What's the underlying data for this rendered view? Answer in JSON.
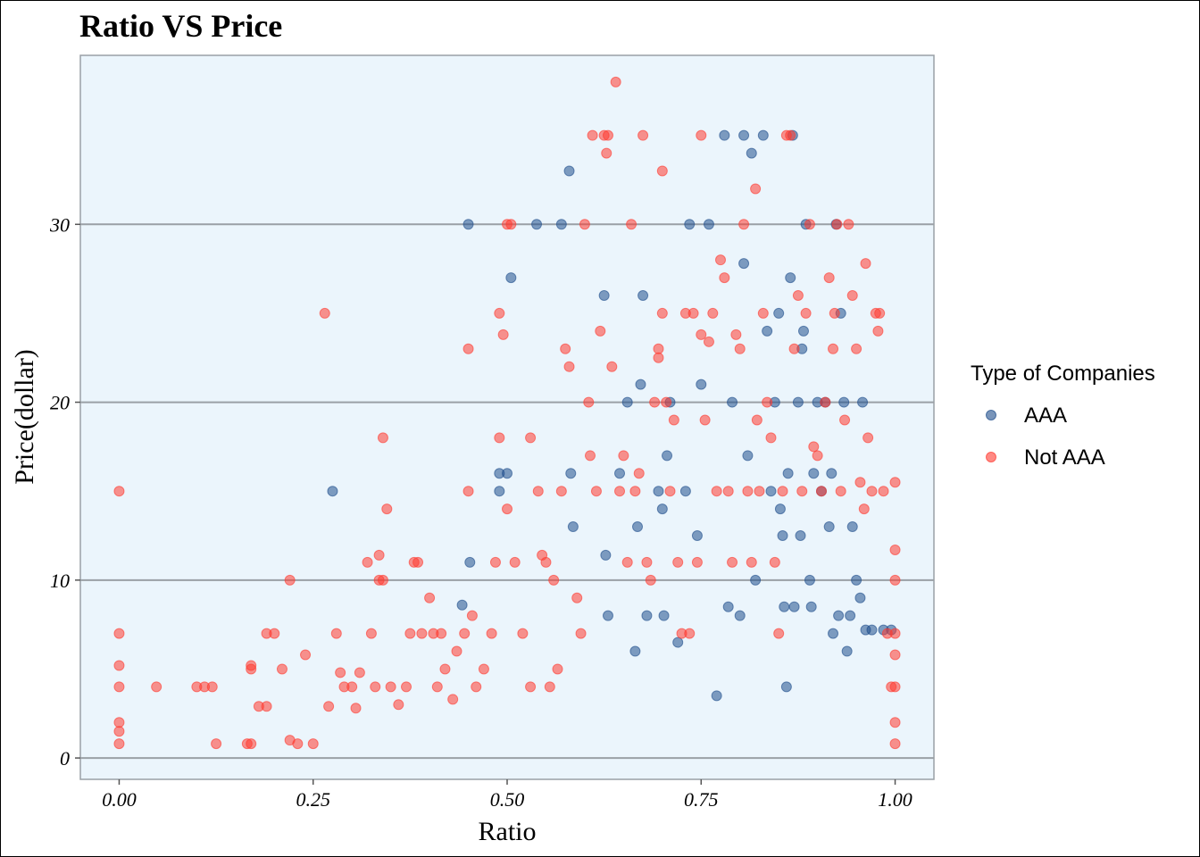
{
  "chart_data": {
    "type": "scatter",
    "title": "Ratio VS Price",
    "xlabel": "Ratio",
    "ylabel": "Price(dollar)",
    "xlim": [
      -0.05,
      1.05
    ],
    "ylim": [
      -1.2,
      39.5
    ],
    "x_ticks": [
      0,
      0.25,
      0.5,
      0.75,
      1.0
    ],
    "x_tick_labels": [
      "0.00",
      "0.25",
      "0.50",
      "0.75",
      "1.00"
    ],
    "y_ticks": [
      0,
      10,
      20,
      30
    ],
    "y_tick_labels": [
      "0",
      "10",
      "20",
      "30"
    ],
    "grid": "horizontal major lines",
    "background": "#EBF5FC",
    "legend": {
      "title": "Type of Companies",
      "placement": "right"
    },
    "series": [
      {
        "name": "AAA",
        "color": "#1F4E8C",
        "points": [
          [
            0.275,
            15
          ],
          [
            0.45,
            30
          ],
          [
            0.452,
            11
          ],
          [
            0.442,
            8.6
          ],
          [
            0.505,
            27
          ],
          [
            0.538,
            30
          ],
          [
            0.57,
            30
          ],
          [
            0.58,
            33
          ],
          [
            0.49,
            16
          ],
          [
            0.49,
            15
          ],
          [
            0.5,
            16
          ],
          [
            0.585,
            13
          ],
          [
            0.582,
            16
          ],
          [
            0.625,
            26
          ],
          [
            0.627,
            11.4
          ],
          [
            0.63,
            8
          ],
          [
            0.645,
            16
          ],
          [
            0.655,
            20
          ],
          [
            0.665,
            6
          ],
          [
            0.668,
            13
          ],
          [
            0.672,
            21
          ],
          [
            0.675,
            26
          ],
          [
            0.68,
            8
          ],
          [
            0.695,
            15
          ],
          [
            0.7,
            14
          ],
          [
            0.702,
            8
          ],
          [
            0.706,
            17
          ],
          [
            0.71,
            20
          ],
          [
            0.72,
            6.5
          ],
          [
            0.73,
            15
          ],
          [
            0.735,
            30
          ],
          [
            0.745,
            12.5
          ],
          [
            0.75,
            21
          ],
          [
            0.76,
            30
          ],
          [
            0.77,
            3.5
          ],
          [
            0.78,
            35
          ],
          [
            0.785,
            8.5
          ],
          [
            0.79,
            20
          ],
          [
            0.8,
            8
          ],
          [
            0.805,
            35
          ],
          [
            0.805,
            27.8
          ],
          [
            0.81,
            17
          ],
          [
            0.815,
            34
          ],
          [
            0.82,
            10
          ],
          [
            0.83,
            35
          ],
          [
            0.835,
            24
          ],
          [
            0.84,
            15
          ],
          [
            0.845,
            20
          ],
          [
            0.85,
            25
          ],
          [
            0.852,
            14
          ],
          [
            0.855,
            12.5
          ],
          [
            0.857,
            8.5
          ],
          [
            0.86,
            4
          ],
          [
            0.862,
            16
          ],
          [
            0.865,
            27
          ],
          [
            0.868,
            35
          ],
          [
            0.87,
            8.5
          ],
          [
            0.875,
            20
          ],
          [
            0.878,
            12.5
          ],
          [
            0.88,
            23
          ],
          [
            0.882,
            24
          ],
          [
            0.885,
            30
          ],
          [
            0.89,
            10
          ],
          [
            0.892,
            8.5
          ],
          [
            0.895,
            16
          ],
          [
            0.9,
            20
          ],
          [
            0.905,
            15
          ],
          [
            0.91,
            20
          ],
          [
            0.915,
            13
          ],
          [
            0.918,
            16
          ],
          [
            0.92,
            7
          ],
          [
            0.924,
            30
          ],
          [
            0.927,
            8
          ],
          [
            0.93,
            25
          ],
          [
            0.934,
            20
          ],
          [
            0.938,
            6
          ],
          [
            0.942,
            8
          ],
          [
            0.945,
            13
          ],
          [
            0.95,
            10
          ],
          [
            0.955,
            9
          ],
          [
            0.958,
            20
          ],
          [
            0.962,
            7.2
          ],
          [
            0.97,
            7.2
          ],
          [
            0.985,
            7.2
          ],
          [
            0.995,
            7.2
          ]
        ]
      },
      {
        "name": "Not AAA",
        "color": "#FF3B30",
        "points": [
          [
            0.0,
            15
          ],
          [
            0.0,
            7
          ],
          [
            0.0,
            5.2
          ],
          [
            0.0,
            4
          ],
          [
            0.0,
            2
          ],
          [
            0.0,
            1.5
          ],
          [
            0.0,
            0.8
          ],
          [
            0.048,
            4
          ],
          [
            0.1,
            4
          ],
          [
            0.11,
            4
          ],
          [
            0.12,
            4
          ],
          [
            0.125,
            0.8
          ],
          [
            0.165,
            0.8
          ],
          [
            0.17,
            5
          ],
          [
            0.17,
            5.2
          ],
          [
            0.17,
            0.8
          ],
          [
            0.18,
            2.9
          ],
          [
            0.19,
            2.9
          ],
          [
            0.19,
            7
          ],
          [
            0.2,
            7
          ],
          [
            0.21,
            5
          ],
          [
            0.22,
            10
          ],
          [
            0.22,
            1
          ],
          [
            0.23,
            0.8
          ],
          [
            0.24,
            5.8
          ],
          [
            0.25,
            0.8
          ],
          [
            0.265,
            25
          ],
          [
            0.27,
            2.9
          ],
          [
            0.28,
            7
          ],
          [
            0.285,
            4.8
          ],
          [
            0.29,
            4
          ],
          [
            0.3,
            4
          ],
          [
            0.305,
            2.8
          ],
          [
            0.31,
            4.8
          ],
          [
            0.32,
            11
          ],
          [
            0.325,
            7
          ],
          [
            0.33,
            4
          ],
          [
            0.335,
            11.4
          ],
          [
            0.335,
            10
          ],
          [
            0.34,
            10
          ],
          [
            0.34,
            18
          ],
          [
            0.345,
            14
          ],
          [
            0.35,
            4
          ],
          [
            0.36,
            3
          ],
          [
            0.37,
            4
          ],
          [
            0.375,
            7
          ],
          [
            0.38,
            11
          ],
          [
            0.385,
            11
          ],
          [
            0.39,
            7
          ],
          [
            0.4,
            9
          ],
          [
            0.405,
            7
          ],
          [
            0.41,
            4
          ],
          [
            0.415,
            7
          ],
          [
            0.42,
            5
          ],
          [
            0.43,
            3.3
          ],
          [
            0.435,
            6
          ],
          [
            0.445,
            7
          ],
          [
            0.45,
            23
          ],
          [
            0.45,
            15
          ],
          [
            0.455,
            8
          ],
          [
            0.46,
            4
          ],
          [
            0.47,
            5
          ],
          [
            0.48,
            7
          ],
          [
            0.485,
            11
          ],
          [
            0.49,
            18
          ],
          [
            0.49,
            25
          ],
          [
            0.495,
            23.8
          ],
          [
            0.5,
            30
          ],
          [
            0.5,
            14
          ],
          [
            0.505,
            30
          ],
          [
            0.51,
            11
          ],
          [
            0.52,
            7
          ],
          [
            0.53,
            4
          ],
          [
            0.53,
            18
          ],
          [
            0.54,
            15
          ],
          [
            0.545,
            11.4
          ],
          [
            0.55,
            11
          ],
          [
            0.555,
            4
          ],
          [
            0.56,
            10
          ],
          [
            0.565,
            5
          ],
          [
            0.57,
            15
          ],
          [
            0.575,
            23
          ],
          [
            0.58,
            22
          ],
          [
            0.59,
            9
          ],
          [
            0.595,
            7
          ],
          [
            0.6,
            30
          ],
          [
            0.605,
            20
          ],
          [
            0.607,
            17
          ],
          [
            0.61,
            35
          ],
          [
            0.615,
            15
          ],
          [
            0.62,
            24
          ],
          [
            0.625,
            35
          ],
          [
            0.628,
            34
          ],
          [
            0.63,
            35
          ],
          [
            0.635,
            22
          ],
          [
            0.64,
            38
          ],
          [
            0.645,
            15
          ],
          [
            0.65,
            17
          ],
          [
            0.655,
            11
          ],
          [
            0.66,
            30
          ],
          [
            0.665,
            15
          ],
          [
            0.67,
            16
          ],
          [
            0.675,
            35
          ],
          [
            0.68,
            11
          ],
          [
            0.685,
            10
          ],
          [
            0.69,
            20
          ],
          [
            0.695,
            23
          ],
          [
            0.695,
            22.5
          ],
          [
            0.7,
            33
          ],
          [
            0.7,
            25
          ],
          [
            0.705,
            20
          ],
          [
            0.71,
            15
          ],
          [
            0.715,
            19
          ],
          [
            0.72,
            11
          ],
          [
            0.725,
            7
          ],
          [
            0.73,
            25
          ],
          [
            0.735,
            7
          ],
          [
            0.74,
            25
          ],
          [
            0.745,
            11
          ],
          [
            0.75,
            35
          ],
          [
            0.75,
            23.8
          ],
          [
            0.755,
            19
          ],
          [
            0.76,
            23.4
          ],
          [
            0.765,
            25
          ],
          [
            0.77,
            15
          ],
          [
            0.775,
            28
          ],
          [
            0.78,
            27
          ],
          [
            0.785,
            15
          ],
          [
            0.79,
            11
          ],
          [
            0.795,
            23.8
          ],
          [
            0.8,
            23
          ],
          [
            0.805,
            30
          ],
          [
            0.81,
            15
          ],
          [
            0.815,
            11
          ],
          [
            0.82,
            32
          ],
          [
            0.822,
            19
          ],
          [
            0.825,
            15
          ],
          [
            0.83,
            25
          ],
          [
            0.835,
            20
          ],
          [
            0.84,
            18
          ],
          [
            0.845,
            11
          ],
          [
            0.85,
            7
          ],
          [
            0.855,
            15
          ],
          [
            0.86,
            35
          ],
          [
            0.865,
            35
          ],
          [
            0.87,
            23
          ],
          [
            0.875,
            26
          ],
          [
            0.88,
            15
          ],
          [
            0.885,
            25
          ],
          [
            0.89,
            30
          ],
          [
            0.895,
            17.5
          ],
          [
            0.9,
            17
          ],
          [
            0.905,
            15
          ],
          [
            0.91,
            20
          ],
          [
            0.915,
            27
          ],
          [
            0.92,
            23
          ],
          [
            0.922,
            25
          ],
          [
            0.925,
            30
          ],
          [
            0.93,
            15
          ],
          [
            0.935,
            19
          ],
          [
            0.94,
            30
          ],
          [
            0.945,
            26
          ],
          [
            0.95,
            23
          ],
          [
            0.955,
            15.5
          ],
          [
            0.96,
            14
          ],
          [
            0.962,
            27.8
          ],
          [
            0.965,
            18
          ],
          [
            0.97,
            15
          ],
          [
            0.975,
            25
          ],
          [
            0.978,
            24
          ],
          [
            0.98,
            25
          ],
          [
            0.985,
            15
          ],
          [
            0.99,
            7
          ],
          [
            0.995,
            4
          ],
          [
            1.0,
            15.5
          ],
          [
            1.0,
            11.7
          ],
          [
            1.0,
            10
          ],
          [
            1.0,
            7
          ],
          [
            1.0,
            5.8
          ],
          [
            1.0,
            4
          ],
          [
            1.0,
            2
          ],
          [
            1.0,
            0.8
          ]
        ]
      }
    ]
  }
}
